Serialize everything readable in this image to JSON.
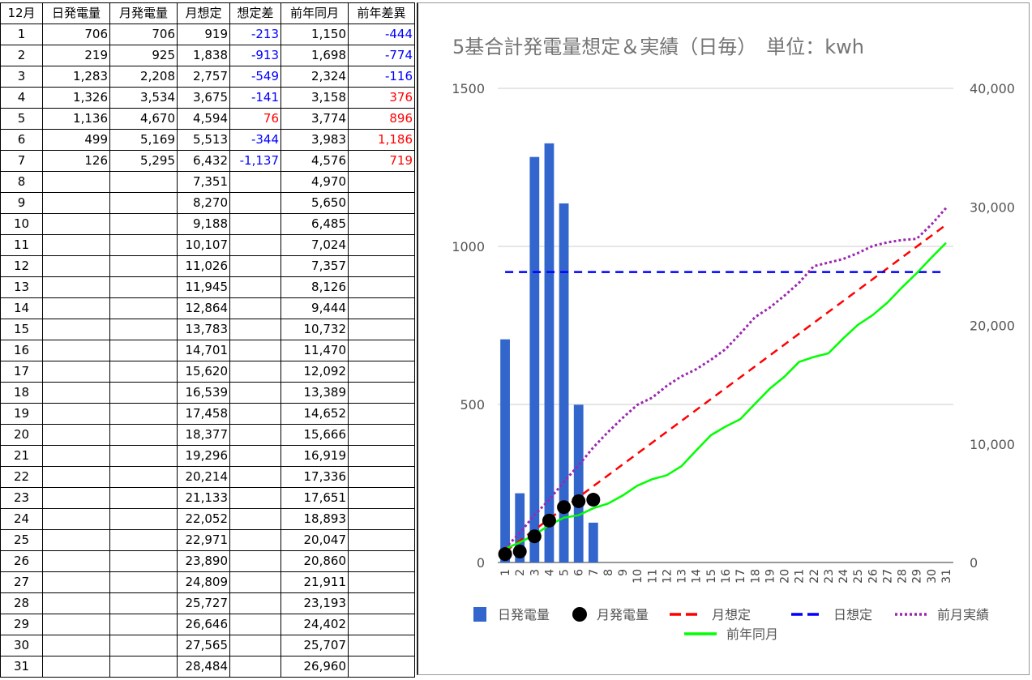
{
  "table": {
    "headers": [
      "12月",
      "日発電量",
      "月発電量",
      "月想定",
      "想定差",
      "前年同月",
      "前年差異"
    ],
    "rows": [
      [
        "1",
        "706",
        "706",
        "919",
        "-213",
        "1,150",
        "-444"
      ],
      [
        "2",
        "219",
        "925",
        "1,838",
        "-913",
        "1,698",
        "-774"
      ],
      [
        "3",
        "1,283",
        "2,208",
        "2,757",
        "-549",
        "2,324",
        "-116"
      ],
      [
        "4",
        "1,326",
        "3,534",
        "3,675",
        "-141",
        "3,158",
        "376"
      ],
      [
        "5",
        "1,136",
        "4,670",
        "4,594",
        "76",
        "3,774",
        "896"
      ],
      [
        "6",
        "499",
        "5,169",
        "5,513",
        "-344",
        "3,983",
        "1,186"
      ],
      [
        "7",
        "126",
        "5,295",
        "6,432",
        "-1,137",
        "4,576",
        "719"
      ],
      [
        "8",
        "",
        "",
        "7,351",
        "",
        "4,970",
        ""
      ],
      [
        "9",
        "",
        "",
        "8,270",
        "",
        "5,650",
        ""
      ],
      [
        "10",
        "",
        "",
        "9,188",
        "",
        "6,485",
        ""
      ],
      [
        "11",
        "",
        "",
        "10,107",
        "",
        "7,024",
        ""
      ],
      [
        "12",
        "",
        "",
        "11,026",
        "",
        "7,357",
        ""
      ],
      [
        "13",
        "",
        "",
        "11,945",
        "",
        "8,126",
        ""
      ],
      [
        "14",
        "",
        "",
        "12,864",
        "",
        "9,444",
        ""
      ],
      [
        "15",
        "",
        "",
        "13,783",
        "",
        "10,732",
        ""
      ],
      [
        "16",
        "",
        "",
        "14,701",
        "",
        "11,470",
        ""
      ],
      [
        "17",
        "",
        "",
        "15,620",
        "",
        "12,092",
        ""
      ],
      [
        "18",
        "",
        "",
        "16,539",
        "",
        "13,389",
        ""
      ],
      [
        "19",
        "",
        "",
        "17,458",
        "",
        "14,652",
        ""
      ],
      [
        "20",
        "",
        "",
        "18,377",
        "",
        "15,666",
        ""
      ],
      [
        "21",
        "",
        "",
        "19,296",
        "",
        "16,919",
        ""
      ],
      [
        "22",
        "",
        "",
        "20,214",
        "",
        "17,336",
        ""
      ],
      [
        "23",
        "",
        "",
        "21,133",
        "",
        "17,651",
        ""
      ],
      [
        "24",
        "",
        "",
        "22,052",
        "",
        "18,893",
        ""
      ],
      [
        "25",
        "",
        "",
        "22,971",
        "",
        "20,047",
        ""
      ],
      [
        "26",
        "",
        "",
        "23,890",
        "",
        "20,860",
        ""
      ],
      [
        "27",
        "",
        "",
        "24,809",
        "",
        "21,911",
        ""
      ],
      [
        "28",
        "",
        "",
        "25,727",
        "",
        "23,193",
        ""
      ],
      [
        "29",
        "",
        "",
        "26,646",
        "",
        "24,402",
        ""
      ],
      [
        "30",
        "",
        "",
        "27,565",
        "",
        "25,707",
        ""
      ],
      [
        "31",
        "",
        "",
        "28,484",
        "",
        "26,960",
        ""
      ]
    ],
    "colors": {
      "negative": "#0000ff",
      "positive": "#ff0000"
    }
  },
  "chart_data": {
    "type": "bar",
    "title": "5基合計発電量想定＆実績（日毎）　単位：kwh",
    "categories": [
      "1",
      "2",
      "3",
      "4",
      "5",
      "6",
      "7",
      "8",
      "9",
      "10",
      "11",
      "12",
      "13",
      "14",
      "15",
      "16",
      "17",
      "18",
      "19",
      "20",
      "21",
      "22",
      "23",
      "24",
      "25",
      "26",
      "27",
      "28",
      "29",
      "30",
      "31"
    ],
    "y_left": {
      "ticks": [
        "0",
        "500",
        "1000",
        "1500"
      ],
      "range": [
        0,
        1500
      ]
    },
    "y_right": {
      "ticks": [
        "0",
        "10,000",
        "20,000",
        "30,000",
        "40,000"
      ],
      "range": [
        0,
        40000
      ]
    },
    "grid": true,
    "legend_position": "bottom",
    "series": [
      {
        "name": "日発電量",
        "type": "bar",
        "axis": "left",
        "color": "#3366cc",
        "values": [
          706,
          219,
          1283,
          1326,
          1136,
          499,
          126,
          null,
          null,
          null,
          null,
          null,
          null,
          null,
          null,
          null,
          null,
          null,
          null,
          null,
          null,
          null,
          null,
          null,
          null,
          null,
          null,
          null,
          null,
          null,
          null
        ]
      },
      {
        "name": "月発電量",
        "type": "scatter",
        "axis": "right",
        "color": "#000000",
        "values": [
          706,
          925,
          2208,
          3534,
          4670,
          5169,
          5295,
          null,
          null,
          null,
          null,
          null,
          null,
          null,
          null,
          null,
          null,
          null,
          null,
          null,
          null,
          null,
          null,
          null,
          null,
          null,
          null,
          null,
          null,
          null,
          null
        ]
      },
      {
        "name": "月想定",
        "type": "line",
        "style": "dashed",
        "axis": "right",
        "color": "#ff0000",
        "values": [
          919,
          1838,
          2757,
          3675,
          4594,
          5513,
          6432,
          7351,
          8270,
          9188,
          10107,
          11026,
          11945,
          12864,
          13783,
          14701,
          15620,
          16539,
          17458,
          18377,
          19296,
          20214,
          21133,
          22052,
          22971,
          23890,
          24809,
          25727,
          26646,
          27565,
          28484
        ]
      },
      {
        "name": "日想定",
        "type": "line",
        "style": "dashed",
        "axis": "left",
        "color": "#0000ff",
        "values": [
          919,
          919,
          919,
          919,
          919,
          919,
          919,
          919,
          919,
          919,
          919,
          919,
          919,
          919,
          919,
          919,
          919,
          919,
          919,
          919,
          919,
          919,
          919,
          919,
          919,
          919,
          919,
          919,
          919,
          919,
          919
        ]
      },
      {
        "name": "前月実績",
        "type": "line",
        "style": "dotted",
        "axis": "right",
        "color": "#9c27b0",
        "values": [
          1200,
          2500,
          4000,
          5300,
          6800,
          8200,
          9700,
          11000,
          12200,
          13300,
          13900,
          14900,
          15700,
          16300,
          17100,
          18000,
          19300,
          20700,
          21500,
          22500,
          23600,
          25000,
          25300,
          25600,
          26100,
          26700,
          27000,
          27200,
          27300,
          28500,
          29900
        ]
      },
      {
        "name": "前年同月",
        "type": "line",
        "style": "solid",
        "axis": "right",
        "color": "#00ff00",
        "values": [
          1150,
          1698,
          2324,
          3158,
          3774,
          3983,
          4576,
          4970,
          5650,
          6485,
          7024,
          7357,
          8126,
          9444,
          10732,
          11470,
          12092,
          13389,
          14652,
          15666,
          16919,
          17336,
          17651,
          18893,
          20047,
          20860,
          21911,
          23193,
          24402,
          25707,
          26960
        ]
      }
    ]
  }
}
